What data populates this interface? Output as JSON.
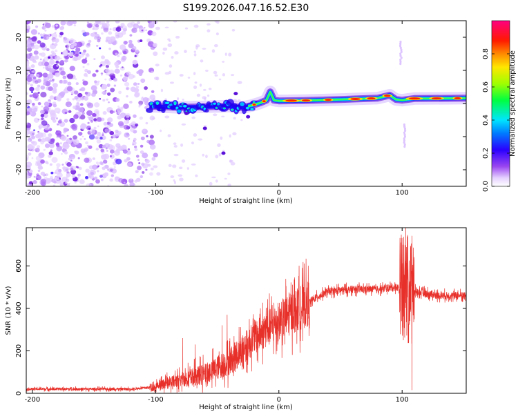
{
  "title": "S199.2026.047.16.52.E30",
  "colors": {
    "signal": "#e8302a",
    "speckle": "#8a3cf0",
    "colormap": [
      "#ffffff",
      "#e0c8ff",
      "#8a2be2",
      "#0000ff",
      "#00ffff",
      "#00ff00",
      "#ffff00",
      "#ff0000",
      "#ff0080"
    ]
  },
  "chart_data": [
    {
      "type": "heatmap",
      "name": "spectrogram",
      "xlabel": "Height of straight line (km)",
      "ylabel": "Frequency (Hz)",
      "xlim": [
        -205,
        152
      ],
      "ylim": [
        -25,
        25
      ],
      "xticks": [
        {
          "value": -200,
          "label": "-200"
        },
        {
          "value": -100,
          "label": "-100"
        },
        {
          "value": 0,
          "label": "0"
        },
        {
          "value": 100,
          "label": "100"
        }
      ],
      "yticks": [
        {
          "value": -20,
          "label": "-20"
        },
        {
          "value": -10,
          "label": "-10"
        },
        {
          "value": 0,
          "label": "0"
        },
        {
          "value": 10,
          "label": "10"
        },
        {
          "value": 20,
          "label": "20"
        }
      ],
      "noise_region": [
        -205,
        -105
      ],
      "ridge": [
        [
          -105,
          -0.8
        ],
        [
          -80,
          -1.2
        ],
        [
          -60,
          -1.0
        ],
        [
          -40,
          -0.8
        ],
        [
          -30,
          -1.2
        ],
        [
          -22,
          -0.6
        ],
        [
          -15,
          0.2
        ],
        [
          -10,
          1.0
        ],
        [
          -7,
          3.5
        ],
        [
          -4,
          1.0
        ],
        [
          0,
          0.8
        ],
        [
          20,
          0.9
        ],
        [
          50,
          1.2
        ],
        [
          80,
          1.6
        ],
        [
          90,
          2.5
        ],
        [
          95,
          1.2
        ],
        [
          100,
          1.0
        ],
        [
          110,
          1.5
        ],
        [
          152,
          1.6
        ]
      ],
      "isolated_spots": [
        [
          -45,
          -15
        ],
        [
          -60,
          -7.5
        ],
        [
          -75,
          -3
        ],
        [
          -25,
          -4
        ],
        [
          -35,
          3
        ]
      ],
      "vertical_streaks": [
        {
          "x": 99,
          "y_range": [
            12,
            19
          ]
        },
        {
          "x": 102,
          "y_range": [
            -13,
            -6
          ]
        }
      ],
      "colorbar": {
        "label": "Normalized spectral amplitude",
        "range": [
          0,
          1
        ],
        "ticks": [
          {
            "value": 0.0,
            "label": "0.0"
          },
          {
            "value": 0.2,
            "label": "0.2"
          },
          {
            "value": 0.4,
            "label": "0.4"
          },
          {
            "value": 0.6,
            "label": "0.6"
          },
          {
            "value": 0.8,
            "label": "0.8"
          }
        ]
      }
    },
    {
      "type": "line",
      "name": "snr",
      "xlabel": "Height of straight line (km)",
      "ylabel": "SNR (10 * v/v)",
      "xlim": [
        -205,
        152
      ],
      "ylim": [
        0,
        780
      ],
      "xticks": [
        {
          "value": -200,
          "label": "-200"
        },
        {
          "value": -100,
          "label": "-100"
        },
        {
          "value": 0,
          "label": "0"
        },
        {
          "value": 100,
          "label": "100"
        }
      ],
      "yticks": [
        {
          "value": 0,
          "label": "0"
        },
        {
          "value": 200,
          "label": "200"
        },
        {
          "value": 400,
          "label": "400"
        },
        {
          "value": 600,
          "label": "600"
        }
      ],
      "trend": [
        [
          -205,
          20
        ],
        [
          -120,
          20
        ],
        [
          -100,
          30
        ],
        [
          -80,
          65
        ],
        [
          -60,
          90
        ],
        [
          -40,
          150
        ],
        [
          -20,
          260
        ],
        [
          0,
          340
        ],
        [
          20,
          410
        ],
        [
          30,
          450
        ],
        [
          40,
          480
        ],
        [
          60,
          490
        ],
        [
          80,
          490
        ],
        [
          95,
          500
        ],
        [
          110,
          480
        ],
        [
          130,
          460
        ],
        [
          152,
          460
        ]
      ],
      "spikes": [
        [
          -78,
          260
        ],
        [
          -68,
          230
        ],
        [
          -46,
          320
        ],
        [
          -42,
          370
        ],
        [
          -24,
          350
        ],
        [
          -15,
          400
        ],
        [
          2,
          430
        ],
        [
          103,
          780
        ],
        [
          107,
          680
        ],
        [
          108,
          15
        ],
        [
          101,
          250
        ]
      ]
    }
  ]
}
